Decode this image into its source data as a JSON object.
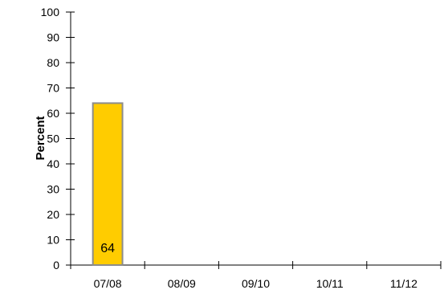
{
  "chart_data": {
    "type": "bar",
    "categories": [
      "07/08",
      "08/09",
      "09/10",
      "10/11",
      "11/12"
    ],
    "series": [
      {
        "values": [
          64,
          null,
          null,
          null,
          null
        ]
      }
    ],
    "data_labels": [
      "64",
      "",
      "",
      "",
      ""
    ],
    "ylabel": "Percent",
    "xlabel": "",
    "ylim": [
      0,
      100
    ],
    "y_ticks": [
      "0",
      "10",
      "20",
      "30",
      "40",
      "50",
      "60",
      "70",
      "80",
      "90",
      "100"
    ],
    "grid": false,
    "legend": "none",
    "colors": {
      "bar_fill": "#ffcc00",
      "bar_stroke": "#8c8c8c",
      "axis": "#000000"
    }
  }
}
